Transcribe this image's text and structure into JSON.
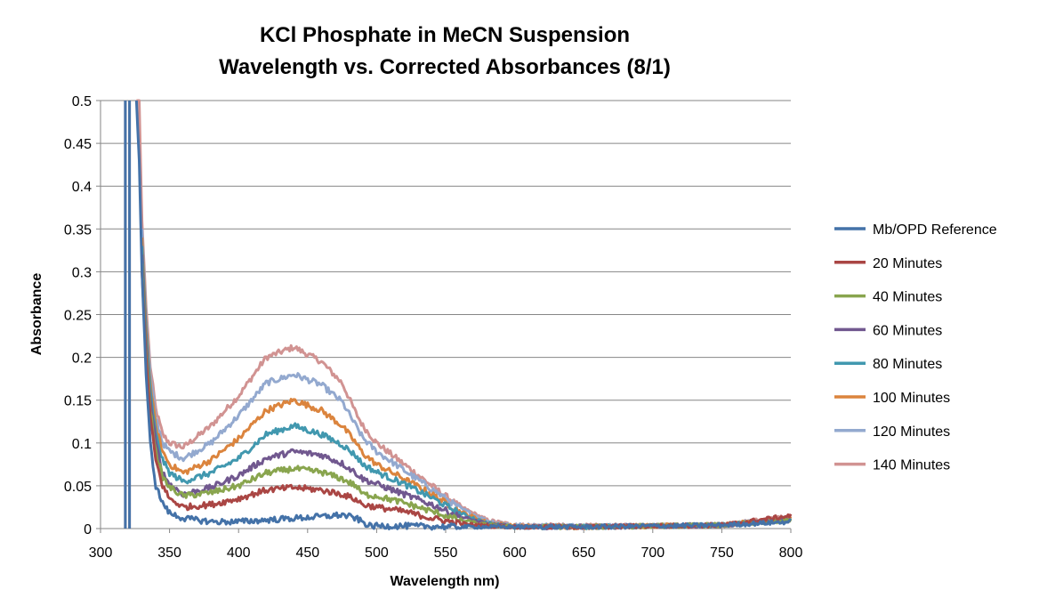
{
  "chart_data": {
    "type": "line",
    "title_line1": "KCl Phosphate in MeCN Suspension",
    "title_line2": "Wavelength vs. Corrected Absorbances (8/1)",
    "xlabel": "Wavelength nm)",
    "ylabel": "Absorbance",
    "xlim": [
      300,
      800
    ],
    "ylim": [
      0,
      0.5
    ],
    "x_ticks": [
      "300",
      "350",
      "400",
      "450",
      "500",
      "550",
      "600",
      "650",
      "700",
      "750",
      "800"
    ],
    "y_ticks": [
      "0",
      "0.05",
      "0.1",
      "0.15",
      "0.2",
      "0.25",
      "0.3",
      "0.35",
      "0.4",
      "0.45",
      "0.5"
    ],
    "grid": "horizontal",
    "legend_position": "right",
    "series": [
      {
        "name": "Mb/OPD Reference",
        "color": "#4472A8",
        "x": [
          318,
          320,
          322,
          324,
          326,
          328,
          330,
          333,
          336,
          340,
          345,
          350,
          360,
          380,
          400,
          420,
          440,
          460,
          475,
          485,
          495,
          520,
          560,
          600,
          650,
          700,
          750,
          800
        ],
        "y": [
          0.5,
          0.5,
          0.5,
          0.5,
          0.5,
          0.43,
          0.3,
          0.18,
          0.1,
          0.05,
          0.03,
          0.018,
          0.012,
          0.008,
          0.008,
          0.01,
          0.012,
          0.014,
          0.016,
          0.012,
          0.003,
          0.003,
          0.002,
          0.002,
          0.002,
          0.003,
          0.004,
          0.008
        ]
      },
      {
        "name": "20 Minutes",
        "color": "#AA4644",
        "x": [
          330,
          333,
          336,
          340,
          345,
          350,
          360,
          380,
          400,
          420,
          440,
          460,
          475,
          485,
          490,
          500,
          520,
          540,
          560,
          580,
          600,
          650,
          700,
          750,
          800
        ],
        "y": [
          0.3,
          0.2,
          0.13,
          0.08,
          0.05,
          0.035,
          0.025,
          0.028,
          0.035,
          0.045,
          0.048,
          0.045,
          0.04,
          0.034,
          0.028,
          0.025,
          0.02,
          0.012,
          0.006,
          0.003,
          0.002,
          0.002,
          0.003,
          0.004,
          0.015
        ]
      },
      {
        "name": "40 Minutes",
        "color": "#89A54E",
        "x": [
          330,
          333,
          336,
          340,
          345,
          350,
          360,
          380,
          400,
          420,
          440,
          460,
          475,
          485,
          490,
          500,
          520,
          540,
          560,
          580,
          600,
          650,
          700,
          750,
          800
        ],
        "y": [
          0.31,
          0.21,
          0.14,
          0.09,
          0.06,
          0.048,
          0.038,
          0.042,
          0.05,
          0.065,
          0.07,
          0.066,
          0.058,
          0.05,
          0.04,
          0.038,
          0.03,
          0.02,
          0.01,
          0.004,
          0.002,
          0.002,
          0.003,
          0.004,
          0.01
        ]
      },
      {
        "name": "60 Minutes",
        "color": "#71588F",
        "x": [
          330,
          333,
          336,
          340,
          345,
          350,
          360,
          380,
          400,
          420,
          440,
          460,
          475,
          485,
          490,
          500,
          520,
          540,
          560,
          580,
          600,
          650,
          700,
          750,
          800
        ],
        "y": [
          0.32,
          0.22,
          0.15,
          0.1,
          0.065,
          0.052,
          0.04,
          0.048,
          0.062,
          0.082,
          0.09,
          0.086,
          0.076,
          0.065,
          0.058,
          0.052,
          0.04,
          0.028,
          0.014,
          0.005,
          0.002,
          0.002,
          0.003,
          0.004,
          0.01
        ]
      },
      {
        "name": "80 Minutes",
        "color": "#4198AF",
        "x": [
          330,
          333,
          336,
          340,
          345,
          350,
          360,
          380,
          400,
          420,
          440,
          460,
          475,
          485,
          490,
          500,
          520,
          540,
          560,
          580,
          600,
          650,
          700,
          750,
          800
        ],
        "y": [
          0.33,
          0.23,
          0.16,
          0.11,
          0.08,
          0.065,
          0.055,
          0.065,
          0.082,
          0.11,
          0.12,
          0.11,
          0.098,
          0.085,
          0.075,
          0.066,
          0.052,
          0.036,
          0.018,
          0.006,
          0.002,
          0.002,
          0.003,
          0.004,
          0.01
        ]
      },
      {
        "name": "100 Minutes",
        "color": "#DB843D",
        "x": [
          330,
          333,
          336,
          340,
          345,
          350,
          360,
          380,
          400,
          420,
          440,
          460,
          475,
          485,
          490,
          500,
          520,
          540,
          560,
          580,
          600,
          650,
          700,
          750,
          800
        ],
        "y": [
          0.34,
          0.24,
          0.17,
          0.12,
          0.09,
          0.075,
          0.065,
          0.08,
          0.105,
          0.138,
          0.15,
          0.138,
          0.12,
          0.1,
          0.088,
          0.075,
          0.058,
          0.04,
          0.02,
          0.007,
          0.003,
          0.002,
          0.003,
          0.004,
          0.012
        ]
      },
      {
        "name": "120 Minutes",
        "color": "#93A9CF",
        "x": [
          330,
          333,
          336,
          340,
          345,
          350,
          360,
          380,
          400,
          420,
          440,
          460,
          475,
          485,
          490,
          500,
          520,
          540,
          560,
          580,
          600,
          650,
          700,
          750,
          800
        ],
        "y": [
          0.35,
          0.25,
          0.18,
          0.13,
          0.1,
          0.09,
          0.082,
          0.1,
          0.132,
          0.17,
          0.18,
          0.168,
          0.148,
          0.12,
          0.106,
          0.09,
          0.068,
          0.046,
          0.024,
          0.009,
          0.004,
          0.003,
          0.003,
          0.004,
          0.012
        ]
      },
      {
        "name": "140 Minutes",
        "color": "#D19392",
        "x": [
          318,
          320,
          322,
          324,
          326,
          328,
          330,
          333,
          336,
          340,
          345,
          350,
          360,
          380,
          400,
          420,
          440,
          460,
          475,
          485,
          490,
          500,
          520,
          540,
          560,
          580,
          600,
          650,
          700,
          750,
          800
        ],
        "y": [
          0.5,
          0.5,
          0.5,
          0.5,
          0.5,
          0.5,
          0.36,
          0.26,
          0.19,
          0.14,
          0.11,
          0.1,
          0.095,
          0.12,
          0.155,
          0.2,
          0.212,
          0.195,
          0.17,
          0.135,
          0.12,
          0.1,
          0.075,
          0.05,
          0.026,
          0.01,
          0.004,
          0.003,
          0.003,
          0.004,
          0.014
        ]
      }
    ]
  }
}
